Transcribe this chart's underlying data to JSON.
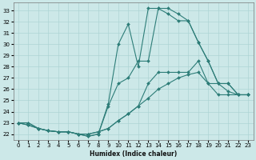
{
  "xlabel": "Humidex (Indice chaleur)",
  "bg_color": "#cce8e8",
  "grid_color": "#aed4d4",
  "line_color": "#2d7d78",
  "xlim": [
    -0.5,
    23.5
  ],
  "ylim": [
    21.5,
    33.7
  ],
  "xticks": [
    0,
    1,
    2,
    3,
    4,
    5,
    6,
    7,
    8,
    9,
    10,
    11,
    12,
    13,
    14,
    15,
    16,
    17,
    18,
    19,
    20,
    21,
    22,
    23
  ],
  "yticks": [
    22,
    23,
    24,
    25,
    26,
    27,
    28,
    29,
    30,
    31,
    32,
    33
  ],
  "curve1_x": [
    0,
    1,
    2,
    3,
    4,
    5,
    6,
    7,
    8,
    9,
    10,
    11,
    12,
    13,
    14,
    15,
    16,
    17,
    18,
    19,
    20,
    21,
    22,
    23
  ],
  "curve1_y": [
    23.0,
    23.0,
    22.5,
    22.3,
    22.2,
    22.2,
    22.0,
    22.0,
    22.2,
    22.5,
    23.2,
    23.8,
    24.5,
    26.5,
    27.5,
    27.5,
    27.5,
    27.5,
    28.5,
    26.5,
    26.5,
    25.8,
    25.5,
    25.5
  ],
  "curve2_x": [
    0,
    1,
    2,
    3,
    4,
    5,
    6,
    7,
    8,
    9,
    10,
    11,
    12,
    13,
    14,
    15,
    16,
    17,
    18,
    19,
    20,
    21,
    22,
    23
  ],
  "curve2_y": [
    23.0,
    23.0,
    22.5,
    22.3,
    22.2,
    22.2,
    22.0,
    22.0,
    22.2,
    22.5,
    23.2,
    23.8,
    24.5,
    25.2,
    26.0,
    26.5,
    27.0,
    27.3,
    27.5,
    26.5,
    25.5,
    25.5,
    25.5,
    25.5
  ],
  "curve3_x": [
    0,
    1,
    2,
    3,
    4,
    5,
    6,
    7,
    8,
    9,
    10,
    11,
    12,
    13,
    14,
    15,
    16,
    17,
    18,
    19,
    20,
    21,
    22,
    23
  ],
  "curve3_y": [
    23.0,
    22.8,
    22.5,
    22.3,
    22.2,
    22.2,
    22.0,
    21.8,
    22.0,
    24.7,
    30.0,
    31.8,
    28.0,
    33.2,
    33.2,
    32.7,
    32.1,
    32.1,
    30.2,
    28.5,
    26.5,
    26.5,
    25.5,
    25.5
  ],
  "curve4_x": [
    0,
    1,
    2,
    3,
    4,
    5,
    6,
    7,
    8,
    9,
    10,
    11,
    12,
    13,
    14,
    15,
    16,
    17,
    18,
    19,
    20,
    21,
    22,
    23
  ],
  "curve4_y": [
    23.0,
    22.8,
    22.5,
    22.3,
    22.2,
    22.2,
    22.0,
    21.8,
    22.0,
    24.5,
    26.5,
    27.0,
    28.5,
    28.5,
    33.2,
    33.2,
    32.7,
    32.1,
    30.2,
    28.5,
    26.5,
    26.5,
    25.5,
    25.5
  ]
}
